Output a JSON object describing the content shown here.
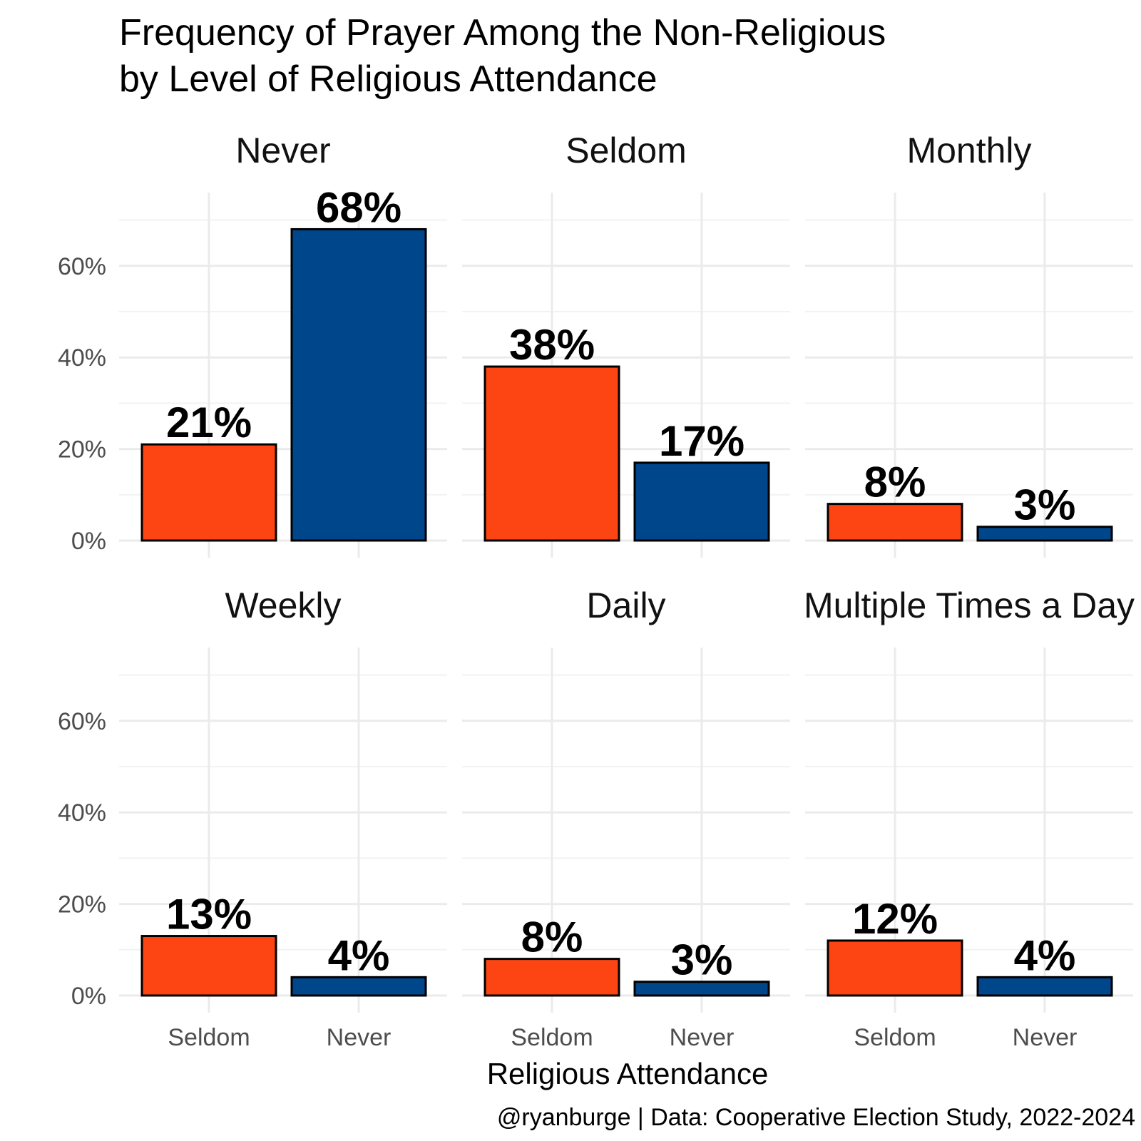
{
  "chart_data": {
    "type": "bar",
    "title": "Frequency of Prayer Among the Non-Religious",
    "subtitle": "by Level of Religious Attendance",
    "xlabel": "Religious Attendance",
    "ylabel": "",
    "caption": "@ryanburge | Data: Cooperative Election Study, 2022-2024",
    "ylim": [
      0,
      0.76
    ],
    "y_ticks": [
      0,
      0.2,
      0.4,
      0.6
    ],
    "y_tick_labels": [
      "0%",
      "20%",
      "40%",
      "60%"
    ],
    "categories": [
      "Seldom",
      "Never"
    ],
    "colors": {
      "Seldom": "#FC4512",
      "Never": "#00468B"
    },
    "facets": [
      {
        "label": "Never",
        "values": [
          0.21,
          0.68
        ],
        "labels": [
          "21%",
          "68%"
        ]
      },
      {
        "label": "Seldom",
        "values": [
          0.38,
          0.17
        ],
        "labels": [
          "38%",
          "17%"
        ]
      },
      {
        "label": "Monthly",
        "values": [
          0.08,
          0.03
        ],
        "labels": [
          "8%",
          "3%"
        ]
      },
      {
        "label": "Weekly",
        "values": [
          0.13,
          0.04
        ],
        "labels": [
          "13%",
          "4%"
        ]
      },
      {
        "label": "Daily",
        "values": [
          0.08,
          0.03
        ],
        "labels": [
          "8%",
          "3%"
        ]
      },
      {
        "label": "Multiple Times a Day",
        "values": [
          0.12,
          0.04
        ],
        "labels": [
          "12%",
          "4%"
        ]
      }
    ]
  }
}
